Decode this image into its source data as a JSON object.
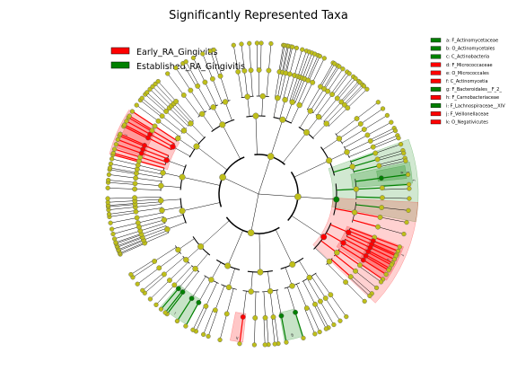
{
  "chart_data": {
    "type": "cladogram",
    "title": "Significantly Represented Taxa",
    "groups": [
      {
        "name": "Early_RA_Gingivitis",
        "color": "#ff0000"
      },
      {
        "name": "Established_RA_Gingivitis",
        "color": "#008000"
      }
    ],
    "background_node_color": "#bfbf1a",
    "taxa": [
      {
        "key": "a",
        "label": "a: F_Actinomycetaceae",
        "group": "Established_RA_Gingivitis"
      },
      {
        "key": "b",
        "label": "b: O_Actinomycetales",
        "group": "Established_RA_Gingivitis"
      },
      {
        "key": "c",
        "label": "c: C_Actinobacteria",
        "group": "Established_RA_Gingivitis"
      },
      {
        "key": "d",
        "label": "d: F_Micrococcaceae",
        "group": "Early_RA_Gingivitis"
      },
      {
        "key": "e",
        "label": "e: O_Micrococcales",
        "group": "Early_RA_Gingivitis"
      },
      {
        "key": "f",
        "label": "f: C_Actinomycetia",
        "group": "Early_RA_Gingivitis"
      },
      {
        "key": "g",
        "label": "g: F_Bacteroidales__F_2_",
        "group": "Established_RA_Gingivitis"
      },
      {
        "key": "h",
        "label": "h: F_Carnobacteriaceae",
        "group": "Early_RA_Gingivitis"
      },
      {
        "key": "i",
        "label": "i: F_Lachnospiraceae__XIV",
        "group": "Established_RA_Gingivitis"
      },
      {
        "key": "j",
        "label": "j: F_Veillonellaceae",
        "group": "Early_RA_Gingivitis"
      },
      {
        "key": "k",
        "label": "k: O_Negativicutes",
        "group": "Early_RA_Gingivitis"
      }
    ],
    "highlighted_sectors": [
      {
        "letter": "c",
        "group": "Established_RA_Gingivitis",
        "start_deg": 10,
        "end_deg": -20,
        "depth": 2
      },
      {
        "letter": "b",
        "group": "Established_RA_Gingivitis",
        "start_deg": -4,
        "end_deg": -12,
        "depth": 3
      },
      {
        "letter": "a",
        "group": "Established_RA_Gingivitis",
        "start_deg": -6,
        "end_deg": -11,
        "depth": 4
      },
      {
        "letter": "f",
        "group": "Early_RA_Gingivitis",
        "start_deg": 3,
        "end_deg": 43,
        "depth": 2
      },
      {
        "letter": "e",
        "group": "Early_RA_Gingivitis",
        "start_deg": 20,
        "end_deg": 34,
        "depth": 3
      },
      {
        "letter": "d",
        "group": "Early_RA_Gingivitis",
        "start_deg": 22,
        "end_deg": 32,
        "depth": 4
      },
      {
        "letter": "g",
        "group": "Established_RA_Gingivitis",
        "start_deg": 73,
        "end_deg": 80,
        "depth": 4
      },
      {
        "letter": "h",
        "group": "Early_RA_Gingivitis",
        "start_deg": 96,
        "end_deg": 101,
        "depth": 4
      },
      {
        "letter": "i",
        "group": "Established_RA_Gingivitis",
        "start_deg": 119,
        "end_deg": 131,
        "depth": 4
      },
      {
        "letter": "k",
        "group": "Early_RA_Gingivitis",
        "start_deg": 195,
        "end_deg": 213,
        "depth": 3
      },
      {
        "letter": "j",
        "group": "Early_RA_Gingivitis",
        "start_deg": 198,
        "end_deg": 210,
        "depth": 4
      }
    ]
  }
}
